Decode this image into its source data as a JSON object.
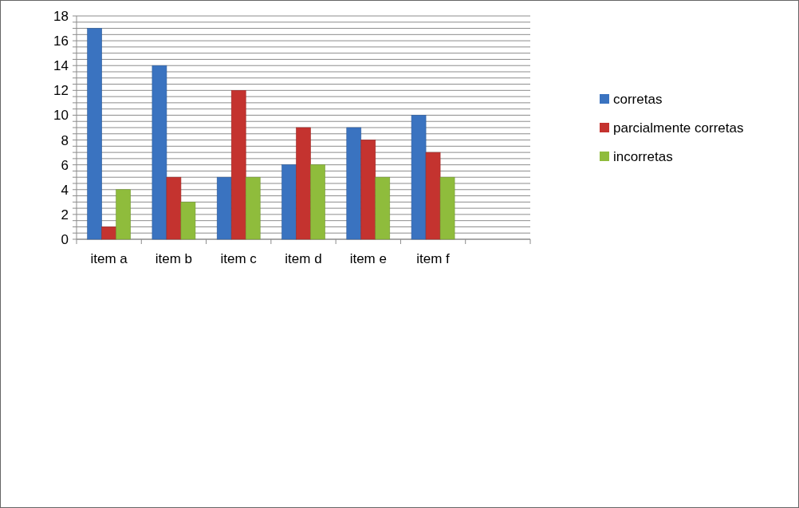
{
  "chart_data": {
    "type": "bar",
    "categories": [
      "item a",
      "item b",
      "item c",
      "item d",
      "item e",
      "item f",
      null
    ],
    "series": [
      {
        "name": "corretas",
        "color": "#3a73c0",
        "values": [
          17,
          14,
          5,
          6,
          9,
          10,
          null
        ]
      },
      {
        "name": "parcialmente corretas",
        "color": "#c4332f",
        "values": [
          1,
          5,
          12,
          9,
          8,
          7,
          null
        ]
      },
      {
        "name": "incorretas",
        "color": "#8fbc3c",
        "values": [
          4,
          3,
          5,
          6,
          5,
          5,
          null
        ]
      }
    ],
    "ylim": [
      0,
      18
    ],
    "yticks": [
      0,
      {
        "value": 0.5,
        "label": null
      },
      {
        "value": 1,
        "label": null
      },
      {
        "value": 1.5,
        "label": null
      },
      2,
      {
        "value": 2.5,
        "label": null
      },
      {
        "value": 3,
        "label": null
      },
      {
        "value": 3.5,
        "label": null
      },
      4,
      {
        "value": 4.5,
        "label": null
      },
      {
        "value": 5,
        "label": null
      },
      {
        "value": 5.5,
        "label": null
      },
      6,
      {
        "value": 6.5,
        "label": null
      },
      {
        "value": 7,
        "label": null
      },
      {
        "value": 7.5,
        "label": null
      },
      8,
      {
        "value": 8.5,
        "label": null
      },
      {
        "value": 9,
        "label": null
      },
      {
        "value": 9.5,
        "label": null
      },
      10,
      {
        "value": 10.5,
        "label": null
      },
      {
        "value": 11,
        "label": null
      },
      {
        "value": 11.5,
        "label": null
      },
      12,
      {
        "value": 12.5,
        "label": null
      },
      {
        "value": 13,
        "label": null
      },
      {
        "value": 13.5,
        "label": null
      },
      14,
      {
        "value": 14.5,
        "label": null
      },
      {
        "value": 15,
        "label": null
      },
      {
        "value": 15.5,
        "label": null
      },
      16,
      {
        "value": 16.5,
        "label": null
      },
      {
        "value": 17,
        "label": null
      },
      {
        "value": 17.5,
        "label": null
      },
      18
    ],
    "grid": "y",
    "legend": "right"
  }
}
